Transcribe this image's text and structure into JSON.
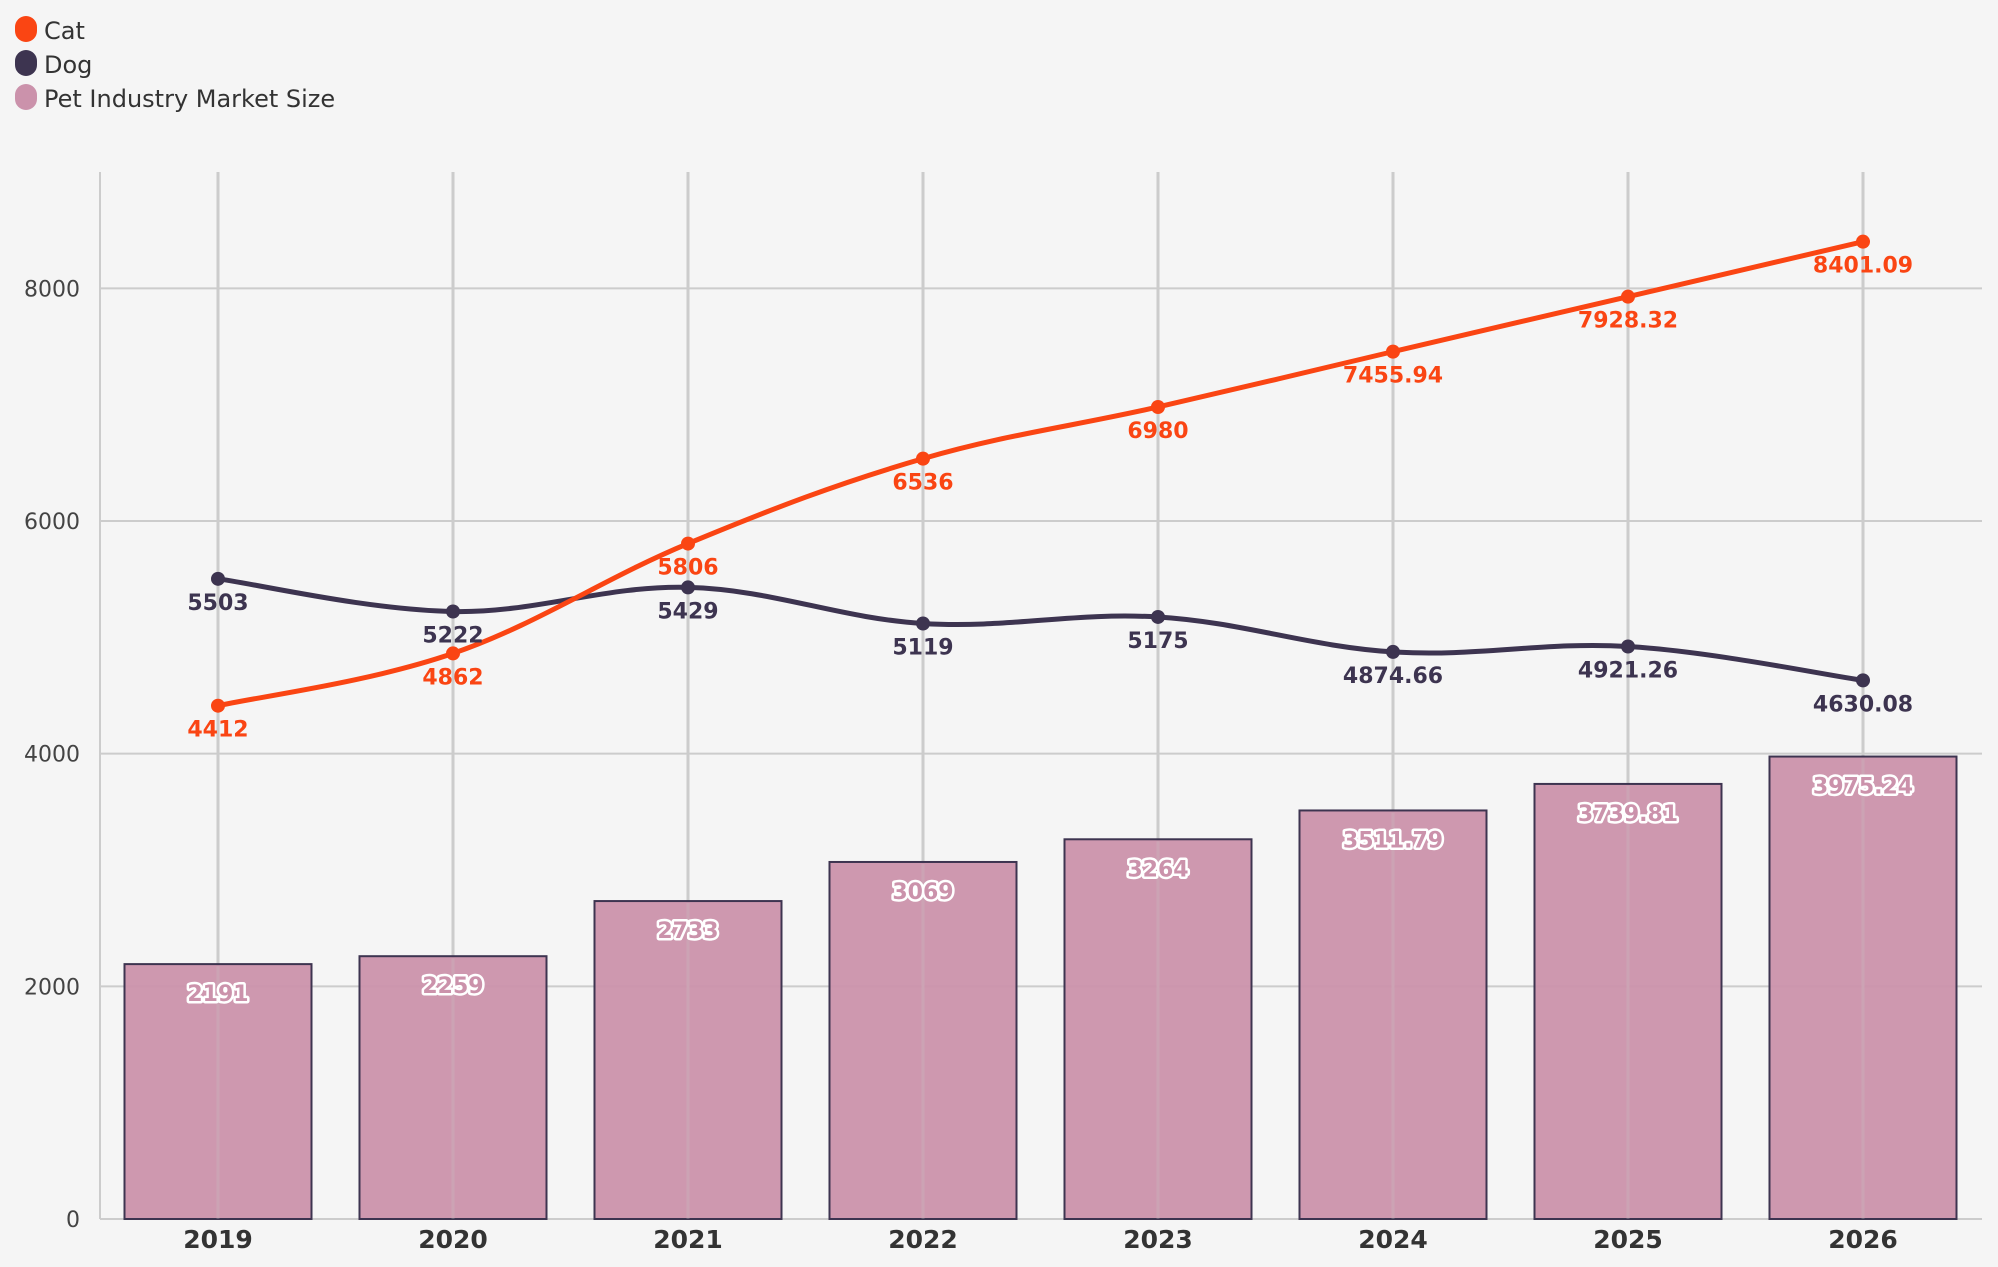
{
  "colors": {
    "cat": "#fa4513",
    "dog": "#3d3450",
    "market": "#cb92ab",
    "bar_stroke": "#3d3450",
    "grid": "#cccccc",
    "background": "#f5f5f5"
  },
  "legend": {
    "items": [
      {
        "label": "Cat",
        "color": "#fa4513"
      },
      {
        "label": "Dog",
        "color": "#3d3450"
      },
      {
        "label": "Pet Industry Market Size",
        "color": "#cb92ab"
      }
    ],
    "position": "top-left"
  },
  "chart_data": {
    "type": "bar",
    "categories": [
      "2019",
      "2020",
      "2021",
      "2022",
      "2023",
      "2024",
      "2025",
      "2026"
    ],
    "series": [
      {
        "name": "Pet Industry Market Size",
        "type": "bar",
        "values": [
          2191,
          2259,
          2733,
          3069,
          3264,
          3511.79,
          3739.81,
          3975.24
        ],
        "labels": [
          "2191",
          "2259",
          "2733",
          "3069",
          "3264",
          "3511.79",
          "3739.81",
          "3975.24"
        ]
      },
      {
        "name": "Cat",
        "type": "line",
        "smooth": true,
        "values": [
          4412,
          4862,
          5806,
          6536,
          6980,
          7455.94,
          7928.32,
          8401.09
        ],
        "labels": [
          "4412",
          "4862",
          "5806",
          "6536",
          "6980",
          "7455.94",
          "7928.32",
          "8401.09"
        ]
      },
      {
        "name": "Dog",
        "type": "line",
        "smooth": true,
        "values": [
          5503,
          5222,
          5429,
          5119,
          5175,
          4874.66,
          4921.26,
          4630.08
        ],
        "labels": [
          "5503",
          "5222",
          "5429",
          "5119",
          "5175",
          "4874.66",
          "4921.26",
          "4630.08"
        ]
      }
    ],
    "y_ticks": [
      "0",
      "2000",
      "4000",
      "6000",
      "8000"
    ],
    "ylim": [
      0,
      9000
    ],
    "title": "",
    "xlabel": "",
    "ylabel": "",
    "grid": true
  }
}
